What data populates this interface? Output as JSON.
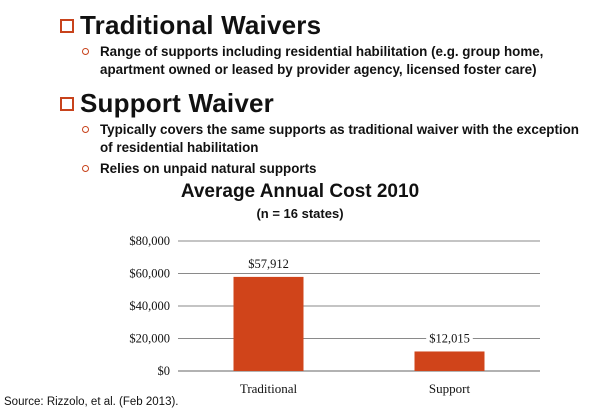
{
  "sections": [
    {
      "title": "Traditional Waivers",
      "bullets": [
        "Range of supports including residential habilitation (e.g. group home, apartment owned or leased by provider agency, licensed foster care)"
      ]
    },
    {
      "title": "Support Waiver",
      "bullets": [
        "Typically covers the same supports as traditional waiver with the exception of residential habilitation",
        "Relies on unpaid natural supports"
      ]
    }
  ],
  "colors": {
    "accent": "#c8431c",
    "bar": "#d0441a"
  },
  "chart_data": {
    "type": "bar",
    "title": "Average Annual Cost 2010",
    "subtitle": "(n = 16 states)",
    "categories": [
      "Traditional",
      "Support"
    ],
    "values": [
      57912,
      12015
    ],
    "value_labels": [
      "$57,912",
      "$12,015"
    ],
    "ylim": [
      0,
      80000
    ],
    "yticks": [
      0,
      20000,
      40000,
      60000,
      80000
    ],
    "ytick_labels": [
      "$0",
      "$20,000",
      "$40,000",
      "$60,000",
      "$80,000"
    ],
    "grid": true,
    "legend": "none"
  },
  "source": "Source: Rizzolo, et al. (Feb 2013)."
}
